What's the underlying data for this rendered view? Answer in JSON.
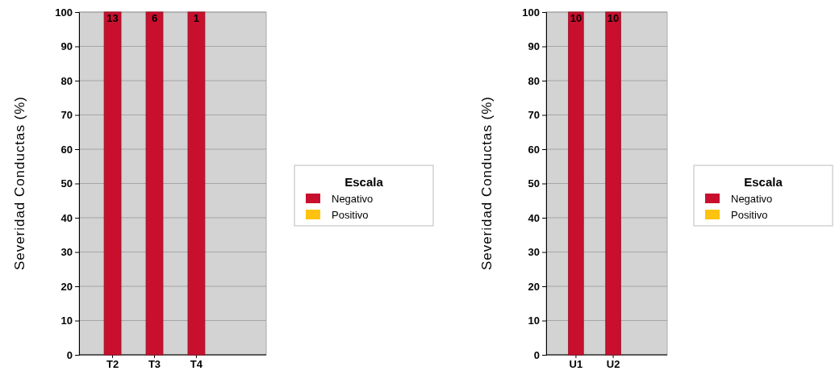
{
  "chart_data": [
    {
      "type": "bar",
      "ylabel": "Severidad Conductas (%)",
      "legend_title": "Escala",
      "legend": "right",
      "grid": "y",
      "categories": [
        "T2",
        "T3",
        "T4"
      ],
      "ylim": [
        0,
        100
      ],
      "yticks": [
        0,
        10,
        20,
        30,
        40,
        50,
        60,
        70,
        80,
        90,
        100
      ],
      "series": [
        {
          "name": "Negativo",
          "color": "#c8102e",
          "values": [
            100,
            100,
            100
          ]
        },
        {
          "name": "Positivo",
          "color": "#ffc20e",
          "values": [
            0,
            0,
            0
          ]
        }
      ],
      "annotations": [
        {
          "text": "13",
          "x": "T2",
          "y": 100
        },
        {
          "text": "6",
          "x": "T3",
          "y": 100
        },
        {
          "text": "1",
          "x": "T4",
          "y": 100
        }
      ]
    },
    {
      "type": "bar",
      "ylabel": "Severidad Conductas (%)",
      "legend_title": "Escala",
      "legend": "right",
      "grid": "y",
      "categories": [
        "U1",
        "U2"
      ],
      "ylim": [
        0,
        100
      ],
      "yticks": [
        0,
        10,
        20,
        30,
        40,
        50,
        60,
        70,
        80,
        90,
        100
      ],
      "series": [
        {
          "name": "Negativo",
          "color": "#c8102e",
          "values": [
            100,
            100
          ]
        },
        {
          "name": "Positivo",
          "color": "#ffc20e",
          "values": [
            0,
            0
          ]
        }
      ],
      "annotations": [
        {
          "text": "10",
          "x": "U1",
          "y": 100
        },
        {
          "text": "10",
          "x": "U2",
          "y": 100
        }
      ]
    }
  ]
}
